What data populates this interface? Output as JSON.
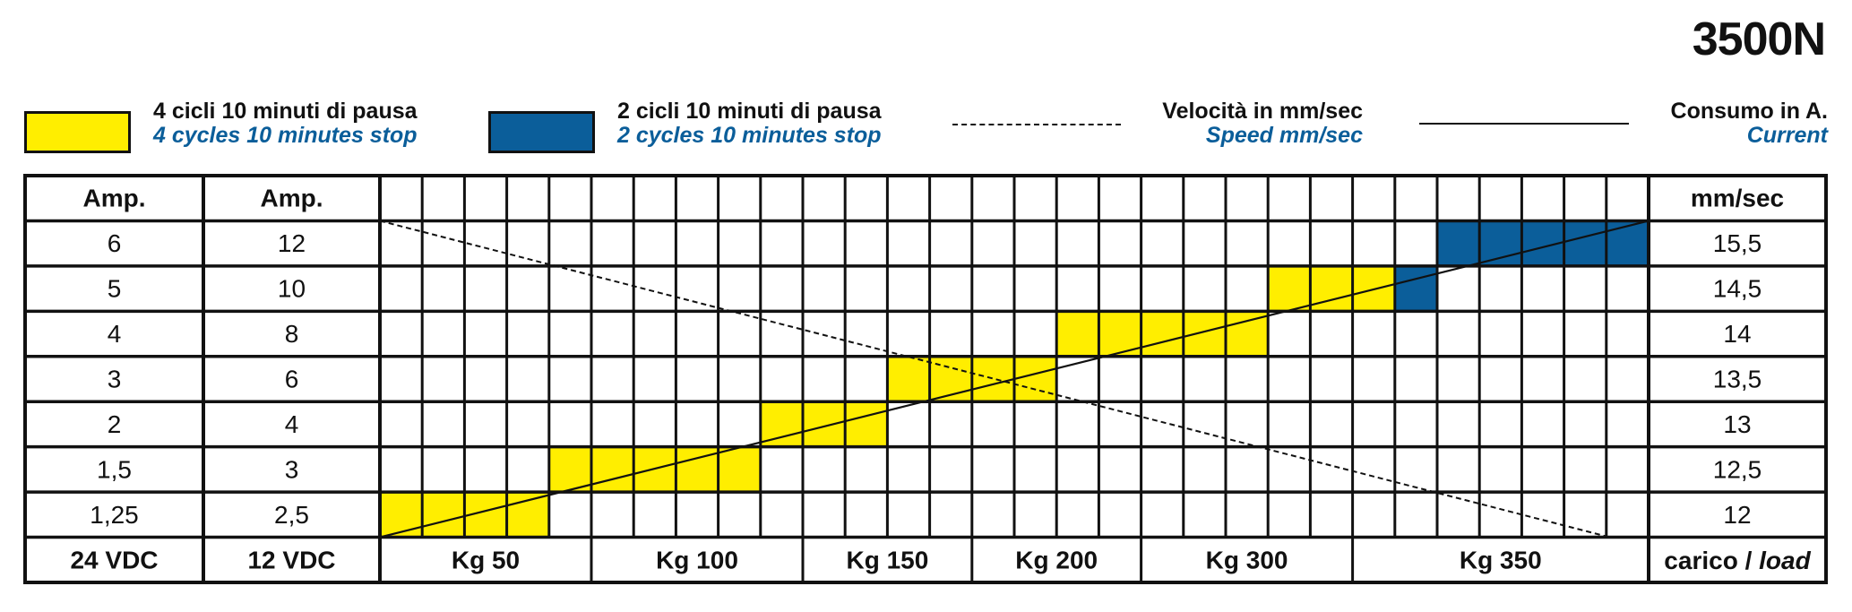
{
  "model": "3500N",
  "legend": {
    "yellow": {
      "it": "4 cicli 10 minuti di pausa",
      "en": "4 cycles 10 minutes stop",
      "color": "#ffee00"
    },
    "blue": {
      "it": "2 cicli 10 minuti di pausa",
      "en": "2 cycles 10 minutes stop",
      "color": "#0b5e9a"
    },
    "speed": {
      "it": "Velocità in mm/sec",
      "en": "Speed mm/sec"
    },
    "current": {
      "it": "Consumo in A.",
      "en": "Current"
    }
  },
  "chart_data": {
    "type": "table",
    "headers": {
      "amp24": "Amp.",
      "amp12": "Amp.",
      "speed": "mm/sec"
    },
    "footer": {
      "amp24": "24 VDC",
      "amp12": "12 VDC",
      "load_it": "carico / ",
      "load_en": "load"
    },
    "rows": [
      {
        "amp24": "6",
        "amp12": "12",
        "speed": "15,5"
      },
      {
        "amp24": "5",
        "amp12": "10",
        "speed": "14,5"
      },
      {
        "amp24": "4",
        "amp12": "8",
        "speed": "14"
      },
      {
        "amp24": "3",
        "amp12": "6",
        "speed": "13,5"
      },
      {
        "amp24": "2",
        "amp12": "4",
        "speed": "13"
      },
      {
        "amp24": "1,5",
        "amp12": "3",
        "speed": "12,5"
      },
      {
        "amp24": "1,25",
        "amp12": "2,5",
        "speed": "12"
      }
    ],
    "load_groups": [
      {
        "label": "Kg 50",
        "columns": 5
      },
      {
        "label": "Kg 100",
        "columns": 5
      },
      {
        "label": "Kg 150",
        "columns": 4
      },
      {
        "label": "Kg 200",
        "columns": 4
      },
      {
        "label": "Kg 300",
        "columns": 5
      },
      {
        "label": "Kg 350",
        "columns": 7
      }
    ],
    "duty_bands": [
      {
        "row": 6,
        "from_col": 0,
        "to_col": 4,
        "duty": "yellow"
      },
      {
        "row": 5,
        "from_col": 4,
        "to_col": 9,
        "duty": "yellow"
      },
      {
        "row": 4,
        "from_col": 9,
        "to_col": 12,
        "duty": "yellow"
      },
      {
        "row": 3,
        "from_col": 12,
        "to_col": 16,
        "duty": "yellow"
      },
      {
        "row": 2,
        "from_col": 16,
        "to_col": 21,
        "duty": "yellow"
      },
      {
        "row": 1,
        "from_col": 21,
        "to_col": 24,
        "duty": "yellow"
      },
      {
        "row": 1,
        "from_col": 24,
        "to_col": 25,
        "duty": "blue"
      },
      {
        "row": 0,
        "from_col": 25,
        "to_col": 30,
        "duty": "blue"
      }
    ]
  }
}
